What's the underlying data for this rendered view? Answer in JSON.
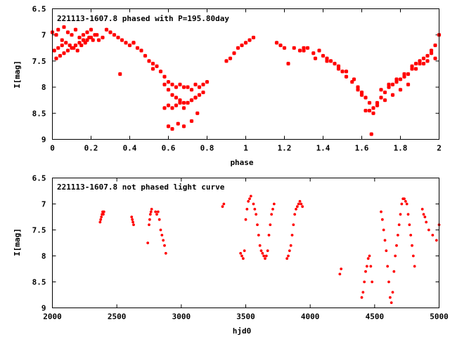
{
  "chart_data": [
    {
      "type": "scatter",
      "title": "221113-1607.8 phased with P=195.80day",
      "xlabel": "phase",
      "ylabel": "I[mag]",
      "xlim": [
        0,
        2
      ],
      "ylim": [
        6.5,
        9
      ],
      "y_inverted": true,
      "xticks": [
        "0",
        "0.2",
        "0.4",
        "0.6",
        "0.8",
        "1",
        "1.2",
        "1.4",
        "1.6",
        "1.8",
        "2"
      ],
      "yticks": [
        "6.5",
        "7",
        "7.5",
        "8",
        "8.5",
        "9"
      ],
      "grid": false,
      "marker_color": "#ff0000",
      "series": [
        {
          "x": [
            0.0,
            0.02,
            0.03,
            0.05,
            0.06,
            0.08,
            0.1,
            0.12,
            0.14,
            0.16,
            0.18,
            0.2,
            0.22,
            0.24,
            0.26,
            0.28,
            0.3,
            0.32,
            0.34,
            0.36,
            0.38,
            0.4,
            0.42,
            0.44,
            0.46,
            0.48,
            0.5,
            0.52,
            0.54,
            0.56,
            0.58,
            0.6,
            0.62,
            0.64,
            0.66,
            0.68,
            0.7,
            0.72,
            0.74,
            0.76,
            0.78,
            0.8,
            0.01,
            0.03,
            0.05,
            0.07,
            0.09,
            0.11,
            0.13,
            0.15,
            0.17,
            0.19,
            0.21,
            0.23,
            0.02,
            0.04,
            0.06,
            0.08,
            0.1,
            0.12,
            0.14,
            0.16,
            0.18,
            0.2,
            0.35,
            0.42,
            0.52,
            0.58,
            0.6,
            0.62,
            0.64,
            0.66,
            0.68,
            0.7,
            0.72,
            0.74,
            0.76,
            0.78,
            0.58,
            0.6,
            0.62,
            0.64,
            0.66,
            0.68,
            0.7,
            0.72,
            0.74,
            0.6,
            0.62,
            0.65,
            0.68,
            0.72,
            0.75,
            0.9,
            0.92,
            0.94,
            0.96,
            0.98,
            1.0,
            1.02,
            1.04,
            1.16,
            1.18,
            1.2,
            1.25,
            1.28,
            1.3,
            1.32,
            1.35,
            1.38,
            1.4,
            1.42,
            1.44,
            1.46,
            1.48,
            1.5,
            1.52,
            1.55,
            1.58,
            1.6,
            1.22,
            1.3,
            1.36,
            1.42,
            1.48,
            1.52,
            1.56,
            1.58,
            1.6,
            1.62,
            1.64,
            1.66,
            1.62,
            1.64,
            1.66,
            1.68,
            1.65,
            1.68,
            1.7,
            1.72,
            1.74,
            1.76,
            1.78,
            1.8,
            1.82,
            1.84,
            1.86,
            1.88,
            1.9,
            1.92,
            1.94,
            1.96,
            1.98,
            2.0,
            1.7,
            1.74,
            1.78,
            1.82,
            1.86,
            1.9,
            1.94,
            1.98,
            1.72,
            1.76,
            1.8,
            1.84,
            1.88,
            1.92,
            1.96
          ],
          "y": [
            6.95,
            7.0,
            6.9,
            7.1,
            6.85,
            6.95,
            7.0,
            6.9,
            7.05,
            7.0,
            6.95,
            6.9,
            7.0,
            7.1,
            7.05,
            6.9,
            6.95,
            7.0,
            7.05,
            7.1,
            7.15,
            7.2,
            7.15,
            7.25,
            7.3,
            7.4,
            7.5,
            7.55,
            7.6,
            7.7,
            7.8,
            7.9,
            7.95,
            8.0,
            7.95,
            8.0,
            8.0,
            8.05,
            7.95,
            8.0,
            7.95,
            7.9,
            7.3,
            7.25,
            7.2,
            7.15,
            7.2,
            7.25,
            7.3,
            7.2,
            7.15,
            7.05,
            7.1,
            7.0,
            7.45,
            7.4,
            7.35,
            7.3,
            7.25,
            7.2,
            7.15,
            7.1,
            7.1,
            7.05,
            7.75,
            7.15,
            7.65,
            7.95,
            8.05,
            8.15,
            8.2,
            8.25,
            8.3,
            8.3,
            8.25,
            8.2,
            8.15,
            8.1,
            8.4,
            8.35,
            8.4,
            8.35,
            8.3,
            8.4,
            8.3,
            8.25,
            8.2,
            8.75,
            8.8,
            8.7,
            8.75,
            8.65,
            8.5,
            7.5,
            7.45,
            7.35,
            7.25,
            7.2,
            7.15,
            7.1,
            7.05,
            7.15,
            7.2,
            7.25,
            7.25,
            7.3,
            7.3,
            7.25,
            7.35,
            7.3,
            7.4,
            7.45,
            7.5,
            7.55,
            7.6,
            7.7,
            7.8,
            7.9,
            8.05,
            8.15,
            7.55,
            7.25,
            7.45,
            7.5,
            7.65,
            7.7,
            7.85,
            8.0,
            8.1,
            8.2,
            8.3,
            8.4,
            8.45,
            8.45,
            8.5,
            8.35,
            8.9,
            8.3,
            8.2,
            8.1,
            8.0,
            7.95,
            7.9,
            7.85,
            7.8,
            7.75,
            7.65,
            7.55,
            7.5,
            7.45,
            7.4,
            7.3,
            7.2,
            7.0,
            8.05,
            7.95,
            7.85,
            7.75,
            7.6,
            7.55,
            7.5,
            7.45,
            8.25,
            8.15,
            8.05,
            7.95,
            7.65,
            7.55,
            7.35
          ]
        }
      ]
    },
    {
      "type": "scatter",
      "title": "221113-1607.8 not phased light curve",
      "xlabel": "hjd0",
      "ylabel": "I[mag]",
      "xlim": [
        2000,
        5000
      ],
      "ylim": [
        6.5,
        9
      ],
      "y_inverted": true,
      "xticks": [
        "2000",
        "2500",
        "3000",
        "3500",
        "4000",
        "4500",
        "5000"
      ],
      "yticks": [
        "6.5",
        "7",
        "7.5",
        "8",
        "8.5",
        "9"
      ],
      "grid": false,
      "marker_color": "#ff0000",
      "series": [
        {
          "x": [
            2370,
            2375,
            2380,
            2385,
            2390,
            2395,
            2400,
            2615,
            2620,
            2625,
            2630,
            2740,
            2750,
            2755,
            2760,
            2765,
            2770,
            2800,
            2810,
            2820,
            2830,
            2840,
            2850,
            2860,
            2870,
            2880,
            3320,
            3330,
            3460,
            3470,
            3480,
            3490,
            3500,
            3510,
            3520,
            3530,
            3540,
            3560,
            3570,
            3580,
            3590,
            3600,
            3610,
            3620,
            3630,
            3640,
            3650,
            3660,
            3670,
            3680,
            3690,
            3700,
            3710,
            3720,
            3820,
            3830,
            3840,
            3850,
            3860,
            3870,
            3880,
            3890,
            3900,
            3910,
            3920,
            3930,
            3940,
            4230,
            4240,
            4400,
            4410,
            4420,
            4430,
            4440,
            4450,
            4460,
            4470,
            4480,
            4550,
            4560,
            4570,
            4580,
            4590,
            4600,
            4610,
            4620,
            4630,
            4640,
            4650,
            4660,
            4670,
            4680,
            4690,
            4700,
            4710,
            4720,
            4730,
            4740,
            4750,
            4760,
            4770,
            4780,
            4790,
            4800,
            4810,
            4870,
            4880,
            4890,
            4900,
            4920,
            4950,
            4980,
            5000
          ],
          "y": [
            7.35,
            7.3,
            7.25,
            7.2,
            7.15,
            7.2,
            7.15,
            7.25,
            7.3,
            7.35,
            7.4,
            7.75,
            7.4,
            7.3,
            7.2,
            7.15,
            7.1,
            7.15,
            7.2,
            7.15,
            7.3,
            7.5,
            7.6,
            7.7,
            7.8,
            7.95,
            7.05,
            7.0,
            7.95,
            8.0,
            8.05,
            7.9,
            7.3,
            7.1,
            6.95,
            6.9,
            6.85,
            7.0,
            7.1,
            7.2,
            7.4,
            7.6,
            7.8,
            7.9,
            7.95,
            8.0,
            8.05,
            8.0,
            7.9,
            7.6,
            7.4,
            7.2,
            7.1,
            7.0,
            8.05,
            8.0,
            7.9,
            7.8,
            7.6,
            7.4,
            7.2,
            7.1,
            7.05,
            7.0,
            6.95,
            7.0,
            7.05,
            8.35,
            8.25,
            8.8,
            8.7,
            8.5,
            8.3,
            8.2,
            8.05,
            8.0,
            8.2,
            8.5,
            7.15,
            7.3,
            7.5,
            7.7,
            7.9,
            8.2,
            8.5,
            8.8,
            8.9,
            8.7,
            8.3,
            8.0,
            7.8,
            7.6,
            7.4,
            7.2,
            7.0,
            6.9,
            6.9,
            6.95,
            7.0,
            7.2,
            7.4,
            7.6,
            7.8,
            8.0,
            8.2,
            7.1,
            7.2,
            7.25,
            7.35,
            7.5,
            7.6,
            7.7,
            7.4
          ]
        }
      ]
    }
  ]
}
